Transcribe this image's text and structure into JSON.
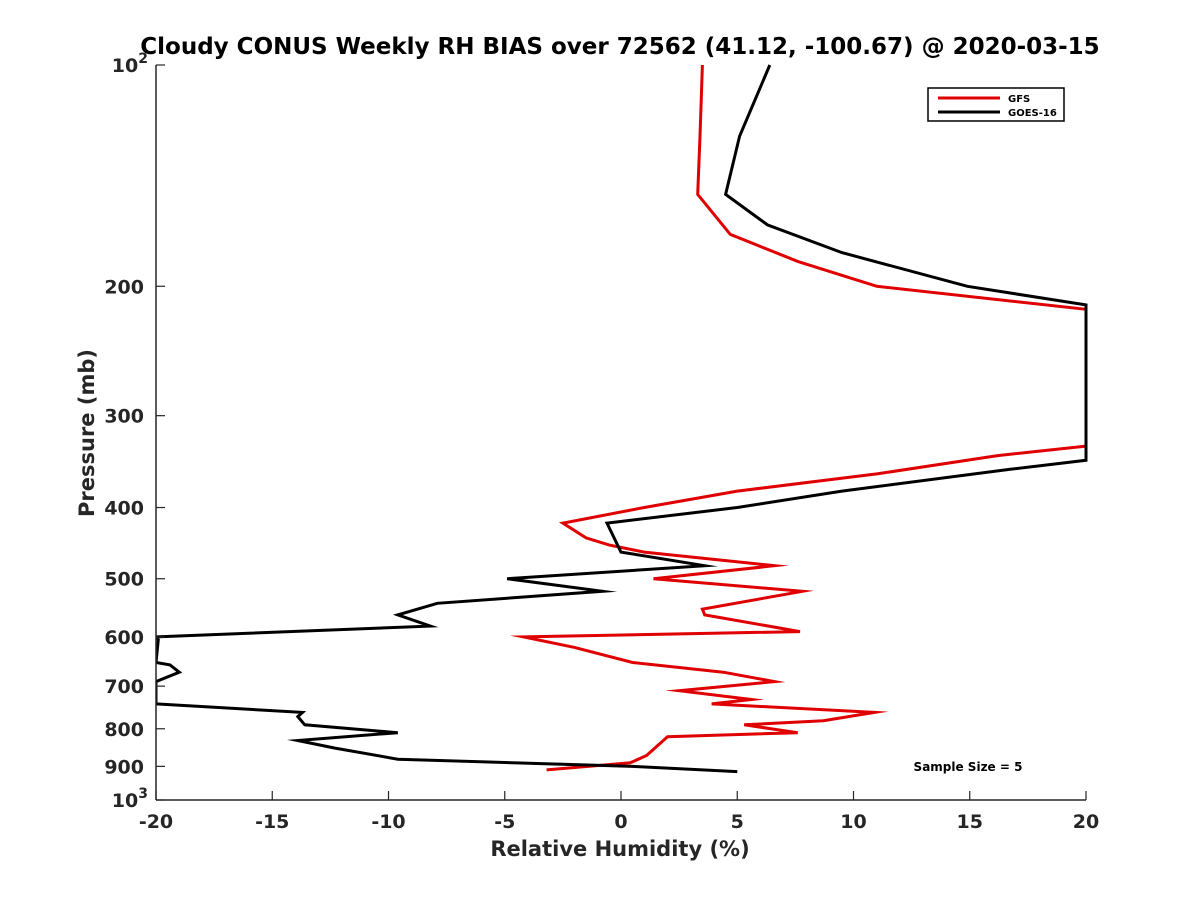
{
  "chart_data": {
    "type": "line",
    "title": "Cloudy CONUS Weekly RH BIAS over 72562 (41.12, -100.67) @ 2020-03-15",
    "xlabel": "Relative Humidity (%)",
    "ylabel": "Pressure (mb)",
    "xlim": [
      -20,
      20
    ],
    "ylim": [
      100,
      1000
    ],
    "yscale": "log",
    "y_reversed": true,
    "x_ticks": [
      {
        "value": -20,
        "label": "-20"
      },
      {
        "value": -15,
        "label": "-15"
      },
      {
        "value": -10,
        "label": "-10"
      },
      {
        "value": -5,
        "label": "-5"
      },
      {
        "value": 0,
        "label": "0"
      },
      {
        "value": 5,
        "label": "5"
      },
      {
        "value": 10,
        "label": "10"
      },
      {
        "value": 15,
        "label": "15"
      },
      {
        "value": 20,
        "label": "20"
      }
    ],
    "y_ticks": [
      {
        "value": 100,
        "base": "10",
        "exp": "2"
      },
      {
        "value": 200,
        "label": "200"
      },
      {
        "value": 300,
        "label": "300"
      },
      {
        "value": 400,
        "label": "400"
      },
      {
        "value": 500,
        "label": "500"
      },
      {
        "value": 600,
        "label": "600"
      },
      {
        "value": 700,
        "label": "700"
      },
      {
        "value": 800,
        "label": "800"
      },
      {
        "value": 900,
        "label": "900"
      },
      {
        "value": 1000,
        "base": "10",
        "exp": "3"
      }
    ],
    "grid": false,
    "legend_position": "top-right",
    "annotation": "Sample Size = 5",
    "series": [
      {
        "name": "GFS",
        "color": "#e00000",
        "points": [
          [
            3.5,
            100
          ],
          [
            3.4,
            125
          ],
          [
            3.3,
            150
          ],
          [
            4.7,
            170
          ],
          [
            7.6,
            185
          ],
          [
            11.0,
            200
          ],
          [
            20.0,
            215
          ],
          [
            20.0,
            330
          ],
          [
            16.2,
            340
          ],
          [
            11.0,
            360
          ],
          [
            5.0,
            380
          ],
          [
            1.0,
            400
          ],
          [
            -2.5,
            420
          ],
          [
            -1.5,
            440
          ],
          [
            -0.5,
            450
          ],
          [
            1.0,
            460
          ],
          [
            6.6,
            480
          ],
          [
            1.4,
            500
          ],
          [
            7.8,
            520
          ],
          [
            3.5,
            550
          ],
          [
            3.6,
            560
          ],
          [
            7.7,
            590
          ],
          [
            -4.2,
            600
          ],
          [
            -2.0,
            620
          ],
          [
            0.5,
            650
          ],
          [
            4.4,
            670
          ],
          [
            6.6,
            690
          ],
          [
            2.5,
            710
          ],
          [
            5.6,
            730
          ],
          [
            3.9,
            740
          ],
          [
            10.9,
            760
          ],
          [
            8.7,
            780
          ],
          [
            5.3,
            790
          ],
          [
            7.6,
            810
          ],
          [
            2.0,
            820
          ],
          [
            1.1,
            870
          ],
          [
            0.4,
            890
          ],
          [
            -3.2,
            910
          ]
        ]
      },
      {
        "name": "GOES-16",
        "color": "#000000",
        "points": [
          [
            6.4,
            100
          ],
          [
            5.1,
            125
          ],
          [
            4.5,
            150
          ],
          [
            6.3,
            165
          ],
          [
            9.5,
            180
          ],
          [
            14.9,
            200
          ],
          [
            20.0,
            212
          ],
          [
            20.0,
            345
          ],
          [
            16.7,
            355
          ],
          [
            9.5,
            380
          ],
          [
            5.0,
            400
          ],
          [
            -0.6,
            420
          ],
          [
            0.0,
            460
          ],
          [
            3.6,
            480
          ],
          [
            -4.9,
            500
          ],
          [
            -0.8,
            520
          ],
          [
            -7.9,
            540
          ],
          [
            -9.6,
            560
          ],
          [
            -8.2,
            580
          ],
          [
            -20.0,
            600
          ],
          [
            -19.9,
            605
          ],
          [
            -20.0,
            650
          ],
          [
            -19.4,
            655
          ],
          [
            -19.0,
            670
          ],
          [
            -20.0,
            690
          ],
          [
            -20.0,
            740
          ],
          [
            -13.7,
            760
          ],
          [
            -13.9,
            770
          ],
          [
            -13.6,
            790
          ],
          [
            -9.6,
            810
          ],
          [
            -13.9,
            830
          ],
          [
            -12.3,
            850
          ],
          [
            -9.6,
            880
          ],
          [
            0.5,
            900
          ],
          [
            5.0,
            915
          ]
        ]
      }
    ]
  }
}
